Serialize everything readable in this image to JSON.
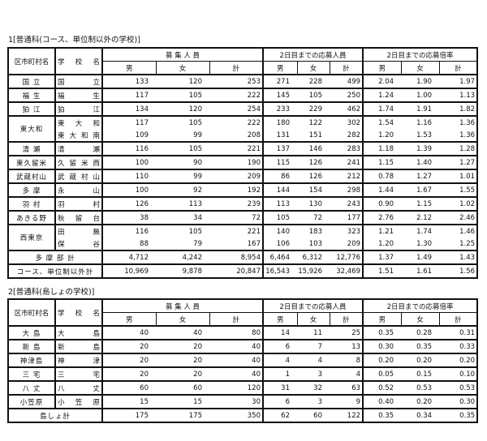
{
  "headers": {
    "district": "区市町村名",
    "school": "学　校　名",
    "recruit": "募 集 人 員",
    "applicants": "2日目までの応募人員",
    "ratio": "2日目までの応募倍率",
    "male": "男",
    "female": "女",
    "total": "計"
  },
  "table1": {
    "title": "1[普通科(コース、単位制以外の学校)]",
    "groups": [
      {
        "district": "国 立",
        "schools": [
          {
            "name": "国立",
            "recruit": [
              "133",
              "120",
              "253"
            ],
            "applicants": [
              "271",
              "228",
              "499"
            ],
            "ratio": [
              "2.04",
              "1.90",
              "1.97"
            ]
          }
        ]
      },
      {
        "district": "福 生",
        "schools": [
          {
            "name": "福生",
            "recruit": [
              "117",
              "105",
              "222"
            ],
            "applicants": [
              "145",
              "105",
              "250"
            ],
            "ratio": [
              "1.24",
              "1.00",
              "1.13"
            ]
          }
        ]
      },
      {
        "district": "狛 江",
        "schools": [
          {
            "name": "狛江",
            "recruit": [
              "134",
              "120",
              "254"
            ],
            "applicants": [
              "233",
              "229",
              "462"
            ],
            "ratio": [
              "1.74",
              "1.91",
              "1.82"
            ]
          }
        ]
      },
      {
        "district": "東大和",
        "schools": [
          {
            "name": "東大和",
            "recruit": [
              "117",
              "105",
              "222"
            ],
            "applicants": [
              "180",
              "122",
              "302"
            ],
            "ratio": [
              "1.54",
              "1.16",
              "1.36"
            ]
          },
          {
            "name": "東大和南",
            "recruit": [
              "109",
              "99",
              "208"
            ],
            "applicants": [
              "131",
              "151",
              "282"
            ],
            "ratio": [
              "1.20",
              "1.53",
              "1.36"
            ]
          }
        ]
      },
      {
        "district": "清 瀬",
        "schools": [
          {
            "name": "清瀬",
            "recruit": [
              "116",
              "105",
              "221"
            ],
            "applicants": [
              "137",
              "146",
              "283"
            ],
            "ratio": [
              "1.18",
              "1.39",
              "1.28"
            ]
          }
        ]
      },
      {
        "district": "東久留米",
        "schools": [
          {
            "name": "久留米西",
            "recruit": [
              "100",
              "90",
              "190"
            ],
            "applicants": [
              "115",
              "126",
              "241"
            ],
            "ratio": [
              "1.15",
              "1.40",
              "1.27"
            ]
          }
        ]
      },
      {
        "district": "武蔵村山",
        "schools": [
          {
            "name": "武蔵村山",
            "recruit": [
              "110",
              "99",
              "209"
            ],
            "applicants": [
              "86",
              "126",
              "212"
            ],
            "ratio": [
              "0.78",
              "1.27",
              "1.01"
            ]
          }
        ]
      },
      {
        "district": "多 摩",
        "schools": [
          {
            "name": "永山",
            "recruit": [
              "100",
              "92",
              "192"
            ],
            "applicants": [
              "144",
              "154",
              "298"
            ],
            "ratio": [
              "1.44",
              "1.67",
              "1.55"
            ]
          }
        ]
      },
      {
        "district": "羽 村",
        "schools": [
          {
            "name": "羽村",
            "recruit": [
              "126",
              "113",
              "239"
            ],
            "applicants": [
              "113",
              "130",
              "243"
            ],
            "ratio": [
              "0.90",
              "1.15",
              "1.02"
            ]
          }
        ]
      },
      {
        "district": "あきる野",
        "schools": [
          {
            "name": "秋留台",
            "recruit": [
              "38",
              "34",
              "72"
            ],
            "applicants": [
              "105",
              "72",
              "177"
            ],
            "ratio": [
              "2.76",
              "2.12",
              "2.46"
            ]
          }
        ]
      },
      {
        "district": "西東京",
        "schools": [
          {
            "name": "田無",
            "recruit": [
              "116",
              "105",
              "221"
            ],
            "applicants": [
              "140",
              "183",
              "323"
            ],
            "ratio": [
              "1.21",
              "1.74",
              "1.46"
            ]
          },
          {
            "name": "保谷",
            "recruit": [
              "88",
              "79",
              "167"
            ],
            "applicants": [
              "106",
              "103",
              "209"
            ],
            "ratio": [
              "1.20",
              "1.30",
              "1.25"
            ]
          }
        ]
      }
    ],
    "totals": [
      {
        "label": "多 摩 部 計",
        "recruit": [
          "4,712",
          "4,242",
          "8,954"
        ],
        "applicants": [
          "6,464",
          "6,312",
          "12,776"
        ],
        "ratio": [
          "1.37",
          "1.49",
          "1.43"
        ]
      },
      {
        "label": "コース、単位制以外計",
        "recruit": [
          "10,969",
          "9,878",
          "20,847"
        ],
        "applicants": [
          "16,543",
          "15,926",
          "32,469"
        ],
        "ratio": [
          "1.51",
          "1.61",
          "1.56"
        ]
      }
    ]
  },
  "table2": {
    "title": "2[普通科(島しょの学校)]",
    "groups": [
      {
        "district": "大 島",
        "schools": [
          {
            "name": "大島",
            "recruit": [
              "40",
              "40",
              "80"
            ],
            "applicants": [
              "14",
              "11",
              "25"
            ],
            "ratio": [
              "0.35",
              "0.28",
              "0.31"
            ]
          }
        ]
      },
      {
        "district": "新 島",
        "schools": [
          {
            "name": "新島",
            "recruit": [
              "20",
              "20",
              "40"
            ],
            "applicants": [
              "6",
              "7",
              "13"
            ],
            "ratio": [
              "0.30",
              "0.35",
              "0.33"
            ]
          }
        ]
      },
      {
        "district": "神津島",
        "schools": [
          {
            "name": "神津",
            "recruit": [
              "20",
              "20",
              "40"
            ],
            "applicants": [
              "4",
              "4",
              "8"
            ],
            "ratio": [
              "0.20",
              "0.20",
              "0.20"
            ]
          }
        ]
      },
      {
        "district": "三 宅",
        "schools": [
          {
            "name": "三宅",
            "recruit": [
              "20",
              "20",
              "40"
            ],
            "applicants": [
              "1",
              "3",
              "4"
            ],
            "ratio": [
              "0.05",
              "0.15",
              "0.10"
            ]
          }
        ]
      },
      {
        "district": "八 丈",
        "schools": [
          {
            "name": "八丈",
            "recruit": [
              "60",
              "60",
              "120"
            ],
            "applicants": [
              "31",
              "32",
              "63"
            ],
            "ratio": [
              "0.52",
              "0.53",
              "0.53"
            ]
          }
        ]
      },
      {
        "district": "小笠原",
        "schools": [
          {
            "name": "小笠原",
            "recruit": [
              "15",
              "15",
              "30"
            ],
            "applicants": [
              "6",
              "3",
              "9"
            ],
            "ratio": [
              "0.40",
              "0.20",
              "0.30"
            ]
          }
        ]
      }
    ],
    "totals": [
      {
        "label": "島しょ計",
        "recruit": [
          "175",
          "175",
          "350"
        ],
        "applicants": [
          "62",
          "60",
          "122"
        ],
        "ratio": [
          "0.35",
          "0.34",
          "0.35"
        ]
      }
    ]
  }
}
